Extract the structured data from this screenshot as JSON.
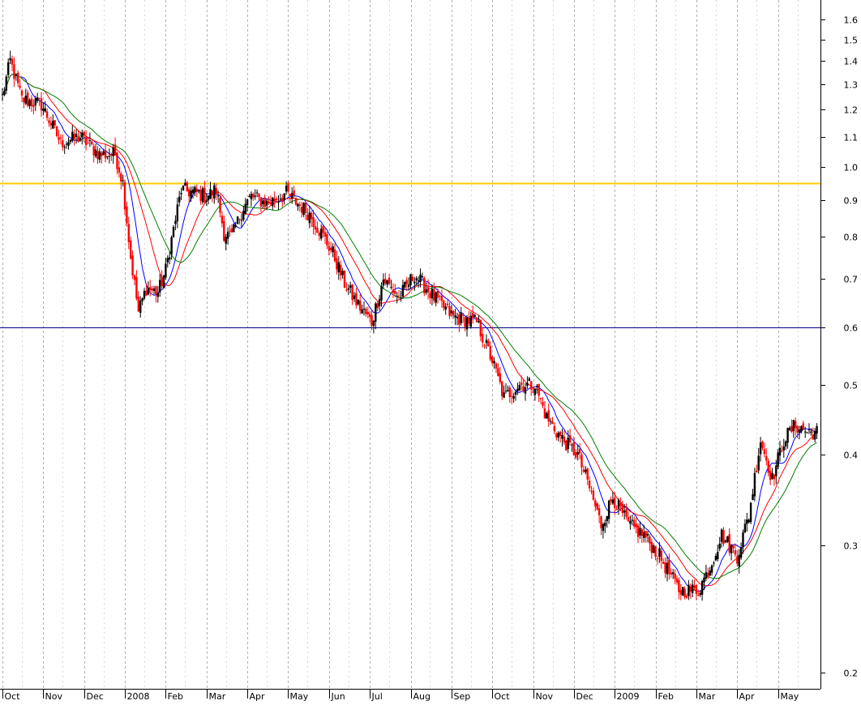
{
  "chart_data": {
    "type": "candlestick",
    "scale": "log",
    "grid": "vertical-dashed",
    "y_ticks": [
      "1.6",
      "1.5",
      "1.4",
      "1.3",
      "1.2",
      "1.1",
      "1.0",
      "0.9",
      "0.8",
      "0.7",
      "0.6",
      "0.5",
      "0.4",
      "0.3",
      "0.2"
    ],
    "y_tick_values": [
      1.6,
      1.5,
      1.4,
      1.3,
      1.2,
      1.1,
      1.0,
      0.9,
      0.8,
      0.7,
      0.6,
      0.5,
      0.4,
      0.3,
      0.2
    ],
    "ylim": [
      0.19,
      1.7
    ],
    "x_labels": [
      "Oct",
      "Nov",
      "Dec",
      "2008",
      "Feb",
      "Mar",
      "Apr",
      "May",
      "Jun",
      "Jul",
      "Aug",
      "Sep",
      "Oct",
      "Nov",
      "Dec",
      "2009",
      "Feb",
      "Mar",
      "Apr",
      "May"
    ],
    "x_label_index": [
      0,
      21,
      42,
      63,
      84,
      105,
      126,
      147,
      168,
      189,
      210,
      231,
      252,
      273,
      294,
      315,
      336,
      357,
      378,
      399
    ],
    "horizontal_lines": [
      {
        "value": 0.95,
        "color": "#ffcc00"
      },
      {
        "value": 0.6,
        "color": "#000080"
      }
    ],
    "colors": {
      "up": "#000000",
      "down": "#ff0000",
      "ma_fast": "#0000ff",
      "ma_mid": "#ff0000",
      "ma_slow": "#008000"
    },
    "anchors": [
      [
        0,
        1.25
      ],
      [
        4,
        1.4
      ],
      [
        10,
        1.24
      ],
      [
        20,
        1.22
      ],
      [
        30,
        1.08
      ],
      [
        40,
        1.1
      ],
      [
        50,
        1.04
      ],
      [
        58,
        1.04
      ],
      [
        62,
        0.95
      ],
      [
        66,
        0.75
      ],
      [
        70,
        0.63
      ],
      [
        74,
        0.68
      ],
      [
        80,
        0.67
      ],
      [
        84,
        0.72
      ],
      [
        88,
        0.82
      ],
      [
        92,
        0.93
      ],
      [
        100,
        0.92
      ],
      [
        105,
        0.91
      ],
      [
        110,
        0.93
      ],
      [
        114,
        0.81
      ],
      [
        118,
        0.8
      ],
      [
        124,
        0.88
      ],
      [
        128,
        0.91
      ],
      [
        136,
        0.89
      ],
      [
        146,
        0.92
      ],
      [
        150,
        0.9
      ],
      [
        158,
        0.86
      ],
      [
        164,
        0.81
      ],
      [
        170,
        0.76
      ],
      [
        176,
        0.69
      ],
      [
        182,
        0.65
      ],
      [
        190,
        0.61
      ],
      [
        196,
        0.7
      ],
      [
        204,
        0.66
      ],
      [
        212,
        0.71
      ],
      [
        222,
        0.66
      ],
      [
        232,
        0.62
      ],
      [
        244,
        0.61
      ],
      [
        252,
        0.54
      ],
      [
        258,
        0.48
      ],
      [
        266,
        0.5
      ],
      [
        274,
        0.5
      ],
      [
        280,
        0.45
      ],
      [
        288,
        0.42
      ],
      [
        296,
        0.4
      ],
      [
        302,
        0.36
      ],
      [
        308,
        0.32
      ],
      [
        314,
        0.35
      ],
      [
        322,
        0.32
      ],
      [
        330,
        0.31
      ],
      [
        338,
        0.29
      ],
      [
        348,
        0.26
      ],
      [
        358,
        0.26
      ],
      [
        364,
        0.28
      ],
      [
        370,
        0.31
      ],
      [
        378,
        0.29
      ],
      [
        384,
        0.33
      ],
      [
        390,
        0.42
      ],
      [
        396,
        0.37
      ],
      [
        402,
        0.42
      ],
      [
        408,
        0.44
      ],
      [
        414,
        0.43
      ]
    ]
  }
}
